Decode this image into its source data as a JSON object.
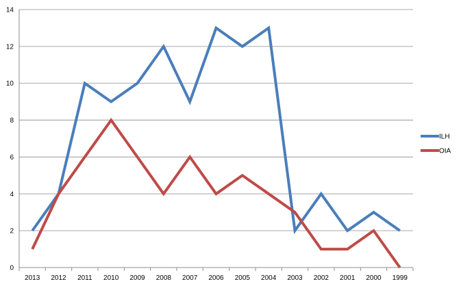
{
  "chart_data": {
    "type": "line",
    "title": "",
    "xlabel": "",
    "ylabel": "",
    "categories": [
      "2013",
      "2012",
      "2011",
      "2010",
      "2009",
      "2008",
      "2007",
      "2006",
      "2005",
      "2004",
      "2003",
      "2002",
      "2001",
      "2000",
      "1999"
    ],
    "ylim": [
      0,
      14
    ],
    "yticks": [
      0,
      2,
      4,
      6,
      8,
      10,
      12,
      14
    ],
    "grid": true,
    "legend_position": "right",
    "series": [
      {
        "name": "ILH",
        "color": "#4a7ebb",
        "values": [
          2,
          4,
          10,
          9,
          10,
          12,
          9,
          13,
          12,
          13,
          2,
          4,
          2,
          3,
          2
        ]
      },
      {
        "name": "OIA",
        "color": "#be4b48",
        "values": [
          1,
          4,
          6,
          8,
          6,
          4,
          6,
          4,
          5,
          4,
          3,
          1,
          1,
          2,
          0
        ]
      }
    ]
  }
}
